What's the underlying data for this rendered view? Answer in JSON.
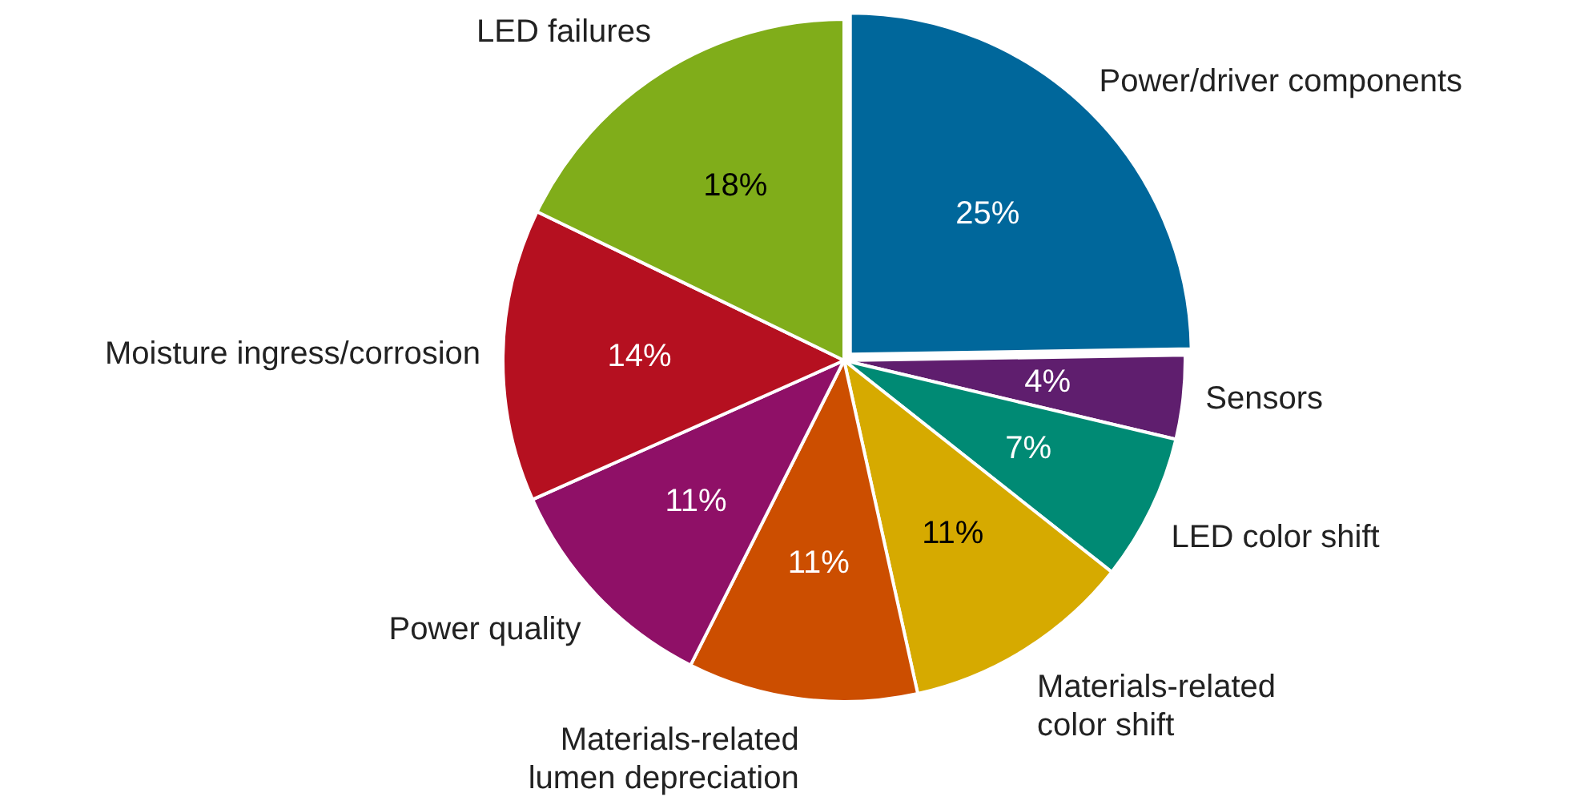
{
  "chart_data": {
    "type": "pie",
    "categories": [
      "Power/driver components",
      "Sensors",
      "LED color shift",
      "Materials-related\ncolor shift",
      "Materials-related\nlumen depreciation",
      "Power quality",
      "Moisture ingress/corrosion",
      "LED failures"
    ],
    "values": [
      25,
      4,
      7,
      11,
      11,
      11,
      14,
      18
    ],
    "value_labels": [
      "25%",
      "4%",
      "7%",
      "11%",
      "11%",
      "11%",
      "14%",
      "18%"
    ],
    "colors": [
      "#00679b",
      "#5f1e6e",
      "#008a74",
      "#d6aa00",
      "#cc4e00",
      "#8f1067",
      "#b51020",
      "#80ad1a"
    ],
    "legend": false
  }
}
